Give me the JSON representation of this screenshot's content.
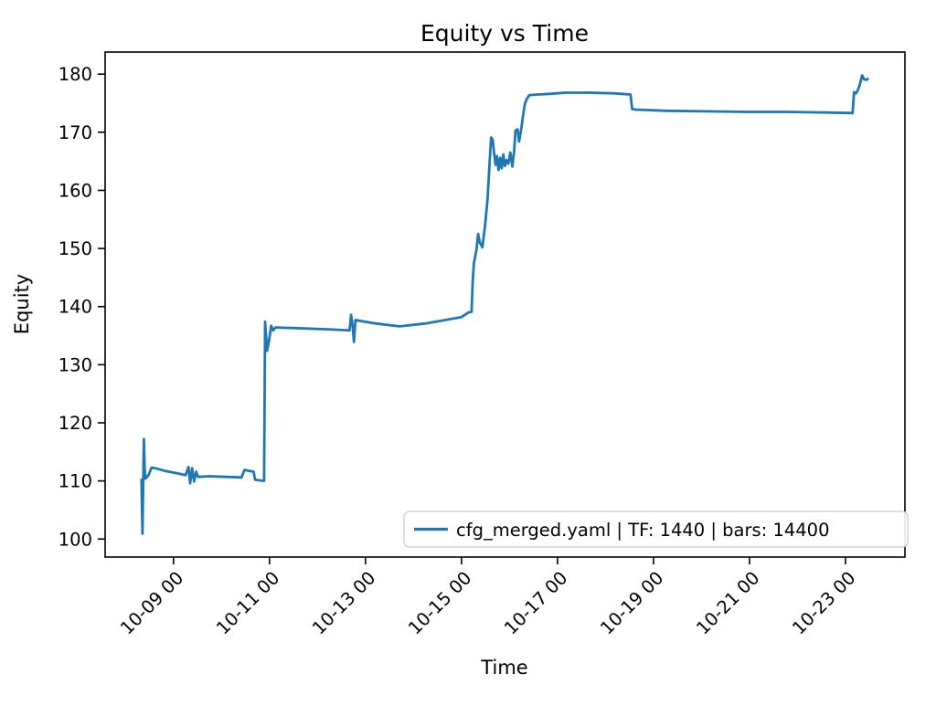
{
  "chart_data": {
    "type": "line",
    "title": "Equity vs Time",
    "xlabel": "Time",
    "ylabel": "Equity",
    "line_color": "#1f77b4",
    "axis_color": "#000000",
    "legend_border_color": "#cccccc",
    "grid": false,
    "legend_position": "lower right inside axes",
    "x_unit": "hours since 10-08 00:00",
    "xlim": [
      -10.2,
      389.7
    ],
    "ylim": [
      96.9,
      183.8
    ],
    "x_ticks": {
      "positions": [
        24,
        72,
        120,
        168,
        216,
        264,
        312,
        360
      ],
      "labels": [
        "10-09 00",
        "10-11 00",
        "10-13 00",
        "10-15 00",
        "10-17 00",
        "10-19 00",
        "10-21 00",
        "10-23 00"
      ]
    },
    "y_ticks": [
      100,
      110,
      120,
      130,
      140,
      150,
      160,
      170,
      180
    ],
    "series": [
      {
        "name": "cfg_merged.yaml | TF: 1440 | bars: 14400",
        "points": [
          [
            8,
            110.4
          ],
          [
            8.3,
            104.0
          ],
          [
            8.5,
            100.9
          ],
          [
            8.8,
            109.0
          ],
          [
            9.2,
            117.2
          ],
          [
            9.6,
            112.0
          ],
          [
            10,
            110.4
          ],
          [
            11.5,
            111.0
          ],
          [
            13,
            112.3
          ],
          [
            16,
            112.1
          ],
          [
            20,
            111.7
          ],
          [
            26,
            111.3
          ],
          [
            30,
            111.0
          ],
          [
            31.5,
            112.4
          ],
          [
            32.3,
            109.6
          ],
          [
            33.3,
            112.2
          ],
          [
            34.3,
            109.9
          ],
          [
            35.3,
            111.6
          ],
          [
            36.3,
            110.7
          ],
          [
            42,
            110.8
          ],
          [
            50,
            110.7
          ],
          [
            58,
            110.6
          ],
          [
            59.5,
            111.9
          ],
          [
            62,
            111.7
          ],
          [
            64,
            111.6
          ],
          [
            64.8,
            110.2
          ],
          [
            67,
            110.1
          ],
          [
            69.3,
            110.0
          ],
          [
            69.8,
            137.4
          ],
          [
            70.8,
            132.4
          ],
          [
            71.8,
            134.2
          ],
          [
            72.8,
            136.7
          ],
          [
            73.8,
            135.9
          ],
          [
            75,
            136.4
          ],
          [
            85,
            136.3
          ],
          [
            100,
            136.1
          ],
          [
            112,
            135.9
          ],
          [
            112.8,
            138.6
          ],
          [
            113.6,
            136.5
          ],
          [
            114.2,
            133.9
          ],
          [
            115,
            137.7
          ],
          [
            118,
            137.5
          ],
          [
            125,
            137.1
          ],
          [
            137,
            136.6
          ],
          [
            150,
            137.1
          ],
          [
            160,
            137.7
          ],
          [
            168,
            138.2
          ],
          [
            171.5,
            139.0
          ],
          [
            173,
            139.1
          ],
          [
            173.6,
            144.5
          ],
          [
            174.2,
            147.5
          ],
          [
            175.5,
            149.8
          ],
          [
            176.3,
            152.5
          ],
          [
            177.2,
            151.0
          ],
          [
            178.4,
            150.2
          ],
          [
            179.8,
            154.0
          ],
          [
            181,
            158.5
          ],
          [
            182,
            164.5
          ],
          [
            182.8,
            169.1
          ],
          [
            183.6,
            168.7
          ],
          [
            184.3,
            166.3
          ],
          [
            185,
            164.4
          ],
          [
            185.7,
            165.9
          ],
          [
            186.5,
            163.5
          ],
          [
            187.3,
            165.6
          ],
          [
            188.1,
            163.8
          ],
          [
            188.9,
            166.2
          ],
          [
            189.7,
            164.2
          ],
          [
            190.5,
            165.2
          ],
          [
            191.4,
            164.6
          ],
          [
            192.4,
            166.5
          ],
          [
            193.4,
            164.1
          ],
          [
            194.3,
            166.8
          ],
          [
            195,
            170.3
          ],
          [
            196,
            170.5
          ],
          [
            196.8,
            168.4
          ],
          [
            197.6,
            170.0
          ],
          [
            198.6,
            172.5
          ],
          [
            199.6,
            174.8
          ],
          [
            200.6,
            175.7
          ],
          [
            202,
            176.4
          ],
          [
            206,
            176.5
          ],
          [
            212,
            176.6
          ],
          [
            220,
            176.8
          ],
          [
            232,
            176.8
          ],
          [
            244,
            176.7
          ],
          [
            252.5,
            176.5
          ],
          [
            253.3,
            174.0
          ],
          [
            255,
            173.9
          ],
          [
            270,
            173.7
          ],
          [
            290,
            173.6
          ],
          [
            310,
            173.5
          ],
          [
            330,
            173.5
          ],
          [
            350,
            173.4
          ],
          [
            363.5,
            173.3
          ],
          [
            364.3,
            176.9
          ],
          [
            365.2,
            176.7
          ],
          [
            366,
            177.1
          ],
          [
            367,
            178.0
          ],
          [
            368.3,
            179.8
          ],
          [
            369.3,
            179.1
          ],
          [
            370.5,
            179.0
          ],
          [
            371.5,
            179.3
          ]
        ]
      }
    ]
  }
}
